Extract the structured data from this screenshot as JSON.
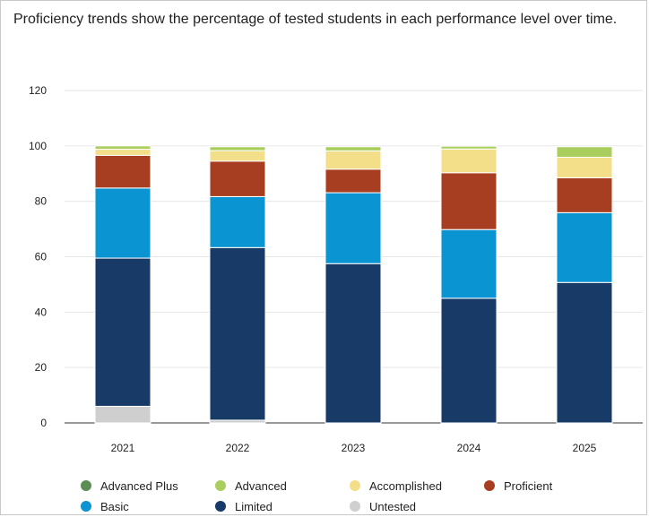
{
  "title": "Proficiency trends show the percentage of tested students in each performance level over time.",
  "chart_data": {
    "type": "bar",
    "stacked": true,
    "categories": [
      "2021",
      "2022",
      "2023",
      "2024",
      "2025"
    ],
    "ylim": [
      0,
      120
    ],
    "yticks": [
      0,
      20,
      40,
      60,
      80,
      100,
      120
    ],
    "grid": true,
    "legend_position": "bottom",
    "series": [
      {
        "name": "Untested",
        "color": "#cfcfcf",
        "values": [
          6,
          1,
          0,
          0,
          0
        ]
      },
      {
        "name": "Limited",
        "color": "#173a67",
        "values": [
          53.5,
          62.3,
          57.5,
          45,
          50.7
        ]
      },
      {
        "name": "Basic",
        "color": "#0a94d1",
        "values": [
          25.3,
          18.4,
          25.6,
          24.8,
          25.2
        ]
      },
      {
        "name": "Proficient",
        "color": "#a83e21",
        "values": [
          11.8,
          12.8,
          8.5,
          20.5,
          12.6
        ]
      },
      {
        "name": "Accomplished",
        "color": "#f3de8a",
        "values": [
          2.2,
          3.8,
          6.6,
          8.6,
          7.4
        ]
      },
      {
        "name": "Advanced",
        "color": "#a9ce5e",
        "values": [
          1.2,
          1.4,
          1.5,
          1.0,
          3.8
        ]
      },
      {
        "name": "Advanced Plus",
        "color": "#5c8d55",
        "values": [
          0,
          0,
          0,
          0,
          0
        ]
      }
    ]
  },
  "legend": [
    {
      "name": "Advanced Plus",
      "color": "#5c8d55"
    },
    {
      "name": "Advanced",
      "color": "#a9ce5e"
    },
    {
      "name": "Accomplished",
      "color": "#f3de8a"
    },
    {
      "name": "Proficient",
      "color": "#a83e21"
    },
    {
      "name": "Basic",
      "color": "#0a94d1"
    },
    {
      "name": "Limited",
      "color": "#173a67"
    },
    {
      "name": "Untested",
      "color": "#cfcfcf"
    }
  ]
}
